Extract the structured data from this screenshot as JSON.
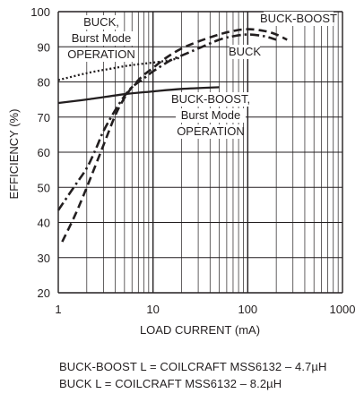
{
  "chart_data": {
    "type": "line",
    "title": "",
    "xlabel": "LOAD CURRENT (mA)",
    "ylabel": "EFFICIENCY (%)",
    "xscale": "log",
    "xlim": [
      1,
      1000
    ],
    "ylim": [
      20,
      100
    ],
    "x_ticks": [
      1,
      10,
      100,
      1000
    ],
    "x_tick_labels": [
      "1",
      "10",
      "100",
      "1000"
    ],
    "y_ticks": [
      20,
      30,
      40,
      50,
      60,
      70,
      80,
      90,
      100
    ],
    "y_tick_labels": [
      "20",
      "30",
      "40",
      "50",
      "60",
      "70",
      "80",
      "90",
      "100"
    ],
    "grid": true,
    "series": [
      {
        "name": "BUCK-BOOST",
        "style": "dashed",
        "x": [
          1.1,
          1.5,
          2,
          3,
          4,
          5,
          6,
          7,
          8,
          10,
          14,
          20,
          30,
          50,
          70,
          100,
          150,
          200,
          260
        ],
        "y": [
          34.5,
          42,
          50,
          62,
          70.5,
          75.5,
          78.5,
          80.5,
          82,
          84,
          87,
          89.5,
          91.5,
          93.5,
          94.5,
          95,
          94.5,
          93.5,
          92
        ]
      },
      {
        "name": "BUCK",
        "style": "dash-dot",
        "x": [
          1,
          1.5,
          2,
          2.5,
          3,
          4,
          5,
          6,
          8,
          10,
          15,
          20,
          30,
          50,
          70,
          100,
          150,
          200
        ],
        "y": [
          43.5,
          50.5,
          55.5,
          61,
          66,
          72,
          76,
          78.5,
          81,
          83,
          86,
          87.5,
          89.5,
          92,
          93,
          93.5,
          93,
          92
        ]
      },
      {
        "name": "BUCK, Burst Mode OPERATION",
        "style": "dotted",
        "x": [
          1,
          2,
          4,
          6,
          10,
          15,
          20
        ],
        "y": [
          80.5,
          82.5,
          84,
          84.8,
          85.5,
          86.2,
          87
        ]
      },
      {
        "name": "BUCK-BOOST, Burst Mode OPERATION",
        "style": "solid",
        "x": [
          1,
          2,
          5,
          10,
          20,
          50
        ],
        "y": [
          74,
          75,
          76.5,
          77.3,
          78,
          78.5
        ]
      }
    ],
    "annotations": [
      {
        "lines": [
          "BUCK,",
          "Burst Mode",
          "OPERATION"
        ]
      },
      {
        "lines": [
          "BUCK-BOOST"
        ]
      },
      {
        "lines": [
          "BUCK"
        ]
      },
      {
        "lines": [
          "BUCK-BOOST,",
          "Burst Mode",
          "OPERATION"
        ]
      }
    ]
  },
  "footnotes": {
    "line1": "BUCK-BOOST L = COILCRAFT MSS6132 – 4.7µH",
    "line2": "BUCK L = COILCRAFT MSS6132 – 8.2µH"
  },
  "colors": {
    "ink": "#231f20",
    "grid": "#231f20",
    "background": "#ffffff"
  }
}
